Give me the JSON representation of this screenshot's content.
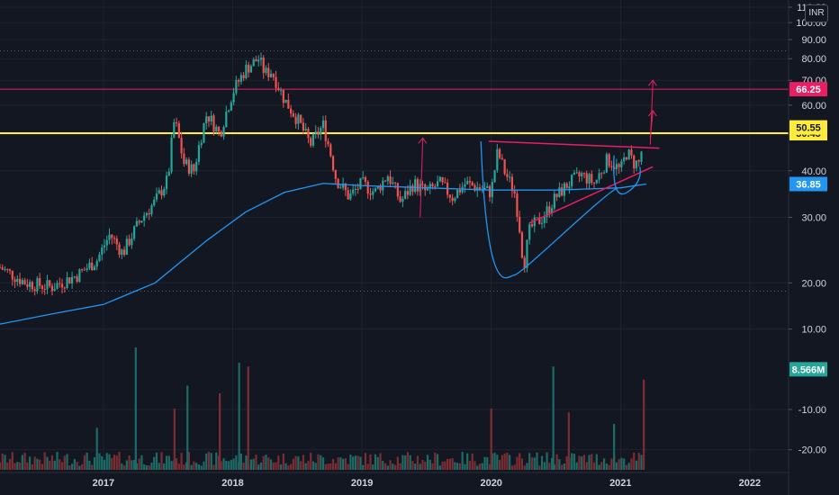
{
  "currency": "INR",
  "colors": {
    "background": "#131722",
    "up": "#26a69a",
    "down": "#ef5350",
    "ma": "#2196f3",
    "drawing": "#e91e63",
    "resistance_red": "#e91e63",
    "resistance_yellow": "#ffeb3b",
    "grid": "#1f2330",
    "text": "#d1d4dc"
  },
  "chart_data": {
    "type": "candlestick",
    "y_ticks": [
      "110.00",
      "100.00",
      "90.00",
      "80.00",
      "70.00",
      "60.00",
      "50.00",
      "40.00",
      "30.00",
      "20.00",
      "10.00",
      "-10.00",
      "-20.00"
    ],
    "x_ticks": [
      "2017",
      "2018",
      "2019",
      "2020",
      "2021",
      "2022"
    ],
    "price_range": [
      15,
      110
    ],
    "log_scale": true,
    "x_range": [
      2016.2,
      2022.3
    ],
    "price_path": [
      [
        2016.2,
        22
      ],
      [
        2016.4,
        20
      ],
      [
        2016.6,
        19.5
      ],
      [
        2016.8,
        21
      ],
      [
        2016.95,
        23
      ],
      [
        2017.05,
        27
      ],
      [
        2017.15,
        24
      ],
      [
        2017.3,
        30
      ],
      [
        2017.4,
        33
      ],
      [
        2017.5,
        38
      ],
      [
        2017.55,
        55
      ],
      [
        2017.62,
        42
      ],
      [
        2017.7,
        40
      ],
      [
        2017.8,
        57
      ],
      [
        2017.9,
        50
      ],
      [
        2018.0,
        65
      ],
      [
        2018.1,
        75
      ],
      [
        2018.2,
        80
      ],
      [
        2018.25,
        73
      ],
      [
        2018.3,
        74
      ],
      [
        2018.4,
        62
      ],
      [
        2018.5,
        55
      ],
      [
        2018.6,
        47
      ],
      [
        2018.7,
        53
      ],
      [
        2018.8,
        38
      ],
      [
        2018.9,
        34
      ],
      [
        2019.0,
        37
      ],
      [
        2019.1,
        35
      ],
      [
        2019.2,
        39
      ],
      [
        2019.3,
        33
      ],
      [
        2019.4,
        37
      ],
      [
        2019.5,
        35
      ],
      [
        2019.6,
        37
      ],
      [
        2019.7,
        34
      ],
      [
        2019.8,
        37
      ],
      [
        2019.9,
        36
      ],
      [
        2020.0,
        35
      ],
      [
        2020.05,
        45
      ],
      [
        2020.1,
        40
      ],
      [
        2020.18,
        35
      ],
      [
        2020.22,
        28
      ],
      [
        2020.25,
        22
      ],
      [
        2020.3,
        28
      ],
      [
        2020.4,
        30
      ],
      [
        2020.5,
        34
      ],
      [
        2020.6,
        37
      ],
      [
        2020.7,
        39
      ],
      [
        2020.8,
        37
      ],
      [
        2020.9,
        43
      ],
      [
        2021.0,
        40
      ],
      [
        2021.05,
        45
      ],
      [
        2021.1,
        42
      ],
      [
        2021.15,
        42
      ],
      [
        2021.18,
        50
      ]
    ],
    "moving_average": [
      [
        2016.2,
        15.5
      ],
      [
        2016.6,
        16.5
      ],
      [
        2017.0,
        17.5
      ],
      [
        2017.4,
        20
      ],
      [
        2017.8,
        26
      ],
      [
        2018.1,
        31
      ],
      [
        2018.4,
        35
      ],
      [
        2018.7,
        37
      ],
      [
        2019.0,
        36.5
      ],
      [
        2019.5,
        36
      ],
      [
        2020.0,
        35.5
      ],
      [
        2020.5,
        35.5
      ],
      [
        2021.0,
        36
      ],
      [
        2021.2,
        36.85
      ]
    ],
    "volume_spikes": [
      {
        "x": 2017.25,
        "v": 160
      },
      {
        "x": 2017.55,
        "v": 80
      },
      {
        "x": 2017.65,
        "v": 110
      },
      {
        "x": 2017.9,
        "v": 100
      },
      {
        "x": 2018.05,
        "v": 140
      },
      {
        "x": 2018.12,
        "v": 135
      },
      {
        "x": 2016.95,
        "v": 55
      },
      {
        "x": 2020.0,
        "v": 80
      },
      {
        "x": 2020.48,
        "v": 135
      },
      {
        "x": 2020.6,
        "v": 75
      },
      {
        "x": 2020.95,
        "v": 60
      },
      {
        "x": 2021.18,
        "v": 118
      }
    ],
    "volume_range": [
      -25,
      5
    ],
    "volume_ticks": [
      "10.00",
      "-10.00",
      "-20.00"
    ],
    "horizontal_levels": [
      {
        "price": 66.25,
        "label": "66.25",
        "color": "#e91e63",
        "text_color": "#ffffff"
      },
      {
        "price": 50.45,
        "label": "50.45",
        "color": "#ffeb3b",
        "text_color": "#131722"
      }
    ],
    "dotted_levels": [
      84,
      19
    ],
    "badges": [
      {
        "label": "50.55",
        "bg": "#ffeb3b",
        "fg": "#131722"
      },
      {
        "label": "36.85",
        "bg": "#2196f3",
        "fg": "#ffffff"
      },
      {
        "label": "8.566M",
        "bg": "#26a69a",
        "fg": "#ffffff"
      }
    ],
    "drawings": {
      "arrow_up_2019": {
        "x": 2019.45,
        "from": 30,
        "to": 49
      },
      "neck_line": {
        "from": [
          2019.98,
          48
        ],
        "to": [
          2021.3,
          46
        ]
      },
      "support_line": {
        "from": [
          2020.3,
          29
        ],
        "to": [
          2021.25,
          41
        ]
      },
      "cup": {
        "from": [
          2019.92,
          48
        ],
        "bottom": [
          2020.18,
          21
        ],
        "to": [
          2020.98,
          36
        ]
      },
      "handle": {
        "from": [
          2020.95,
          44
        ],
        "bottom": [
          2021.05,
          35
        ],
        "to": [
          2021.15,
          41
        ]
      },
      "target_arrow_high": {
        "x": 2021.23,
        "from": 47,
        "to": 70
      },
      "target_arrow_mid": {
        "x": 2021.23,
        "from": 49,
        "to": 58
      }
    }
  }
}
